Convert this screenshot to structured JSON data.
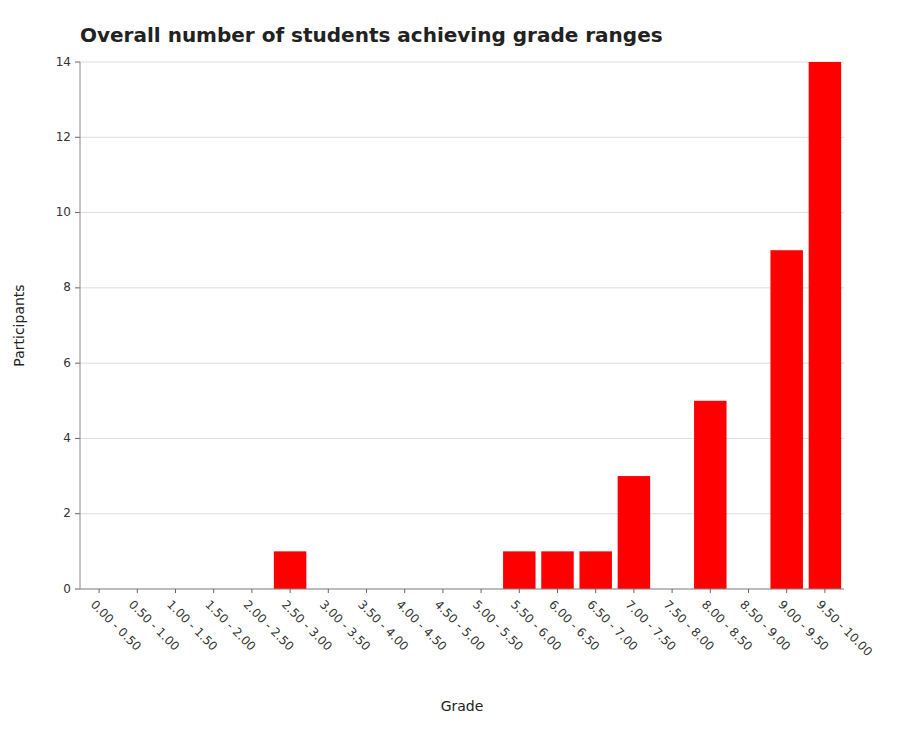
{
  "chart_data": {
    "type": "bar",
    "title": "Overall number of students achieving grade ranges",
    "xlabel": "Grade",
    "ylabel": "Participants",
    "categories": [
      "0.00 - 0.50",
      "0.50 - 1.00",
      "1.00 - 1.50",
      "1.50 - 2.00",
      "2.00 - 2.50",
      "2.50 - 3.00",
      "3.00 - 3.50",
      "3.50 - 4.00",
      "4.00 - 4.50",
      "4.50 - 5.00",
      "5.00 - 5.50",
      "5.50 - 6.00",
      "6.00 - 6.50",
      "6.50 - 7.00",
      "7.00 - 7.50",
      "7.50 - 8.00",
      "8.00 - 8.50",
      "8.50 - 9.00",
      "9.00 - 9.50",
      "9.50 - 10.00"
    ],
    "values": [
      0,
      0,
      0,
      0,
      0,
      1,
      0,
      0,
      0,
      0,
      0,
      1,
      1,
      1,
      3,
      0,
      5,
      0,
      9,
      14
    ],
    "color": "#ff0000",
    "ylim": [
      0,
      14
    ],
    "yticks": [
      0,
      2,
      4,
      6,
      8,
      10,
      12,
      14
    ],
    "grid": true
  }
}
